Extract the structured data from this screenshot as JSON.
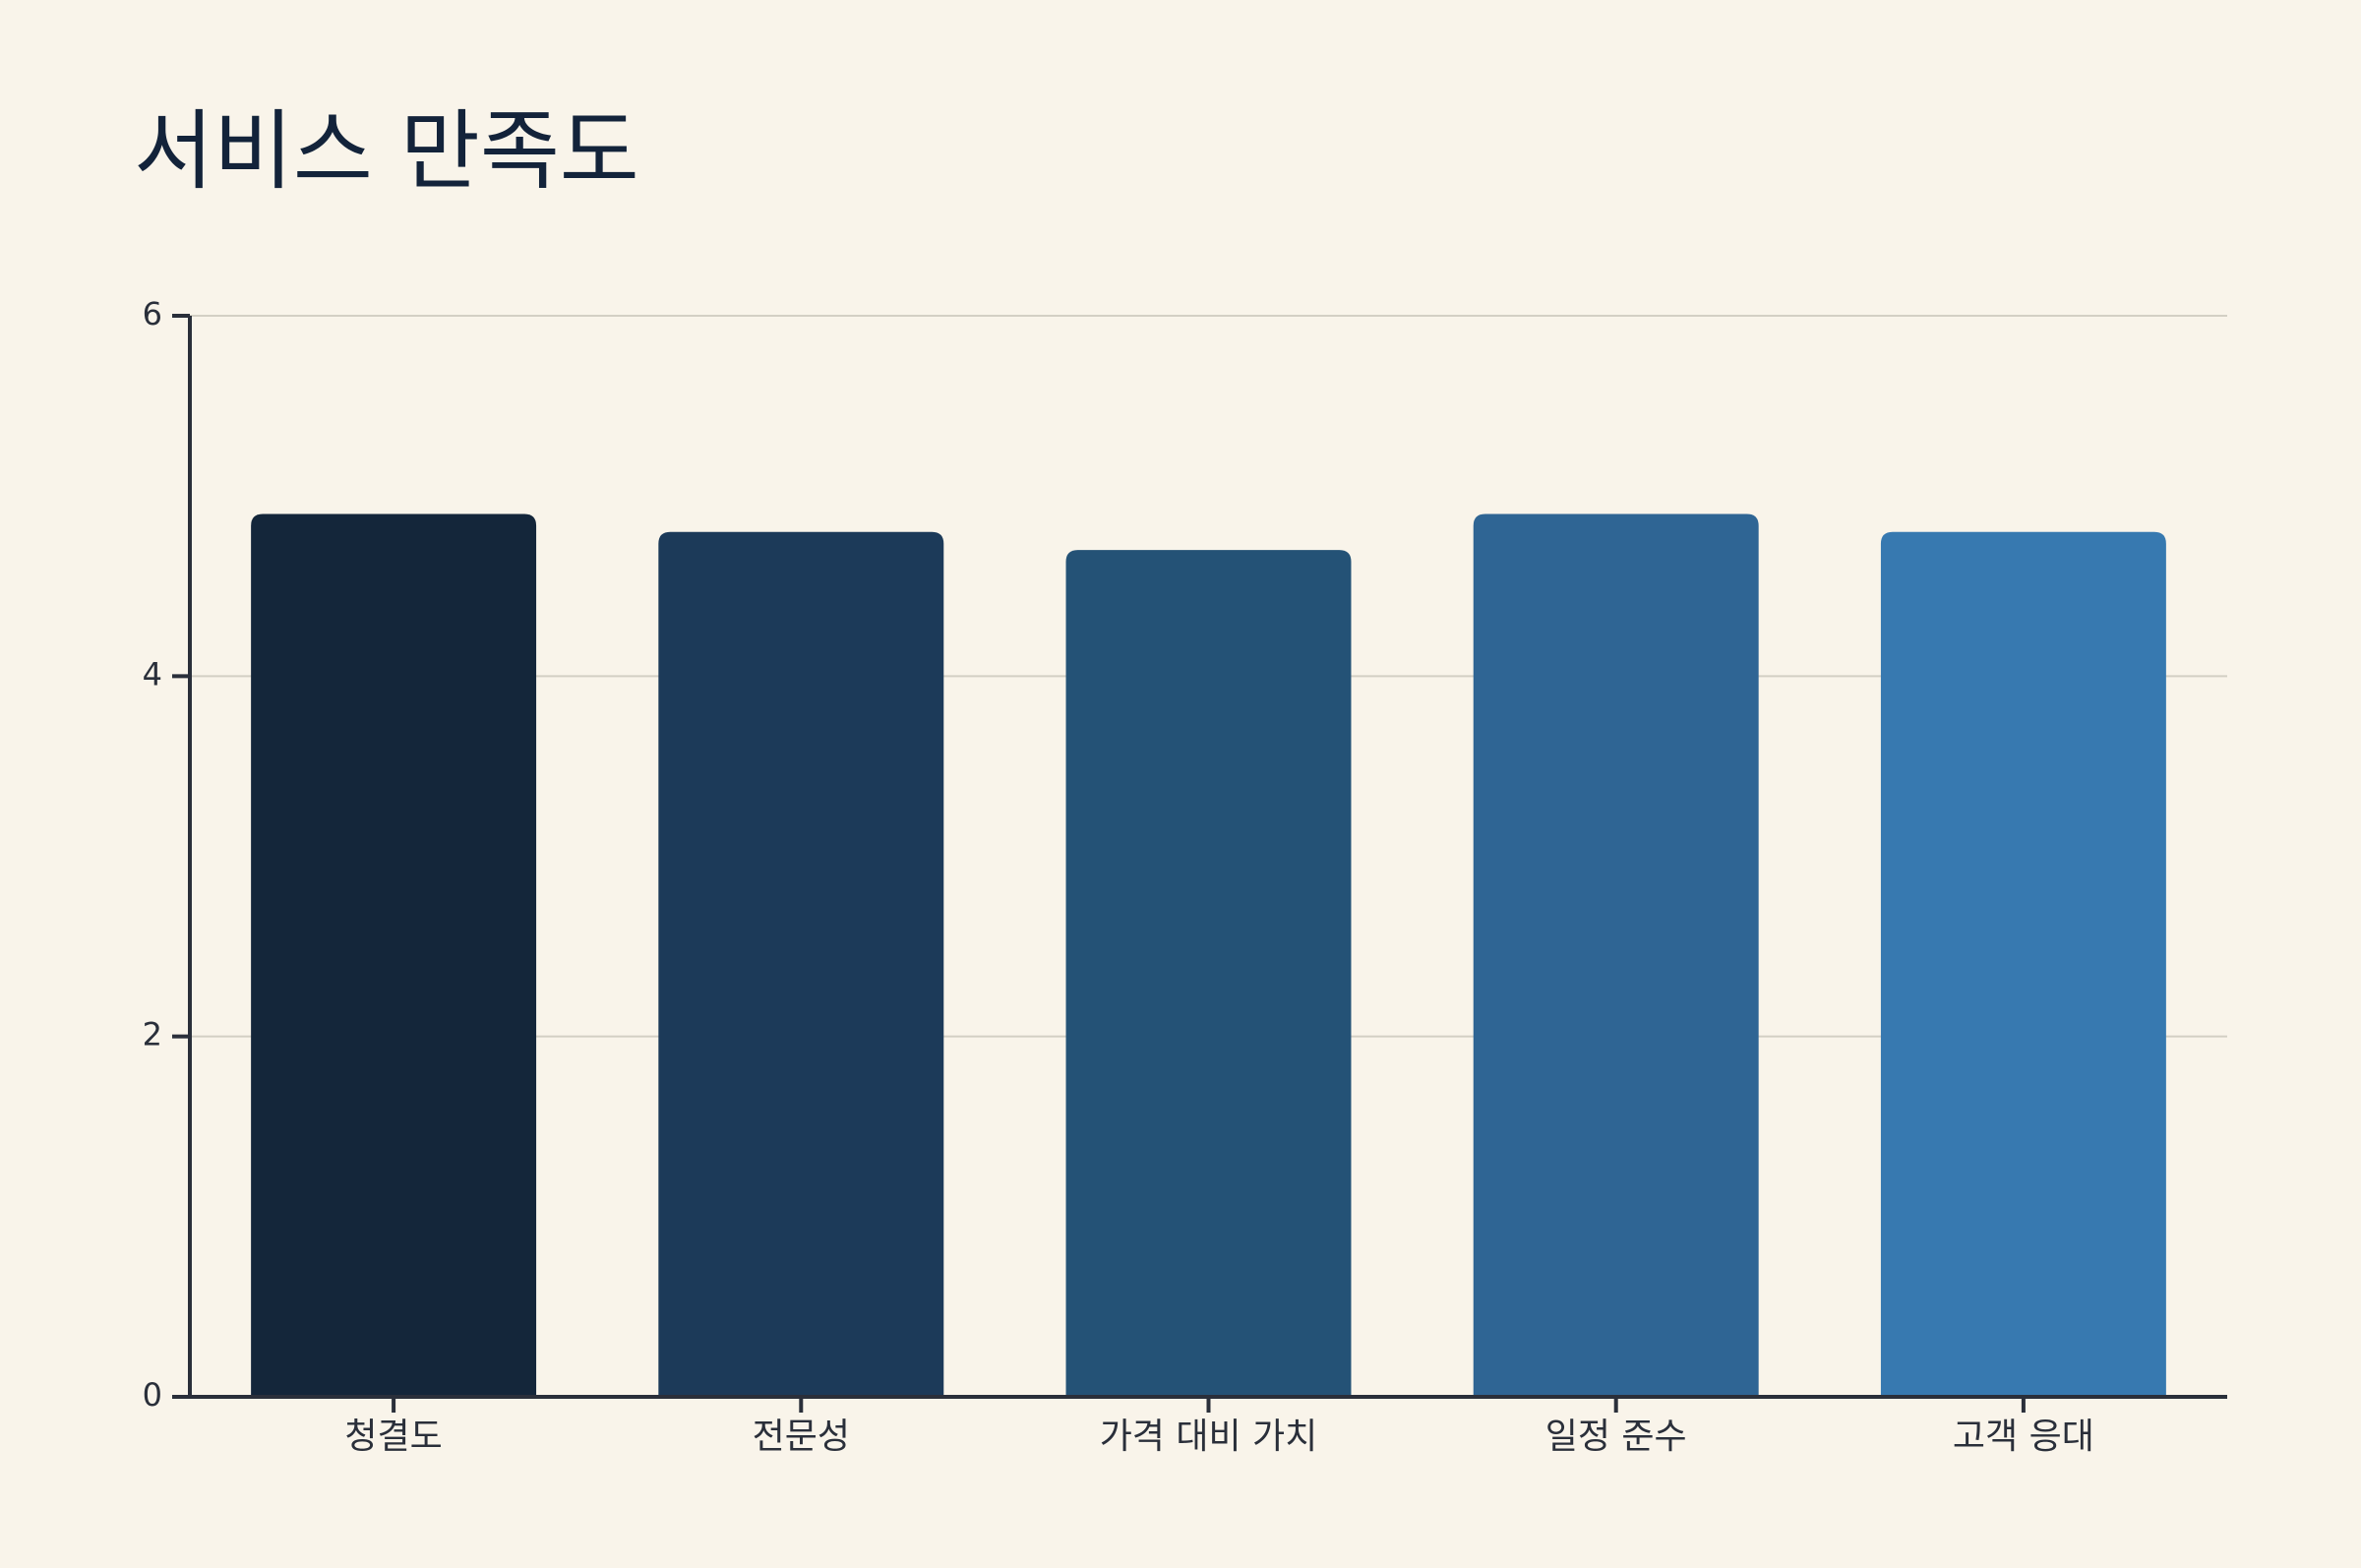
{
  "chart_data": {
    "type": "bar",
    "title": "서비스 만족도",
    "categories": [
      "청결도",
      "전문성",
      "가격 대비 가치",
      "일정 준수",
      "고객 응대"
    ],
    "values": [
      4.9,
      4.8,
      4.7,
      4.9,
      4.8
    ],
    "colors": [
      "#14263a",
      "#1c3a59",
      "#245276",
      "#2f6594",
      "#3779b0"
    ],
    "ylim": [
      0,
      6
    ],
    "yticks": [
      0,
      2,
      4,
      6
    ],
    "grid": true
  }
}
